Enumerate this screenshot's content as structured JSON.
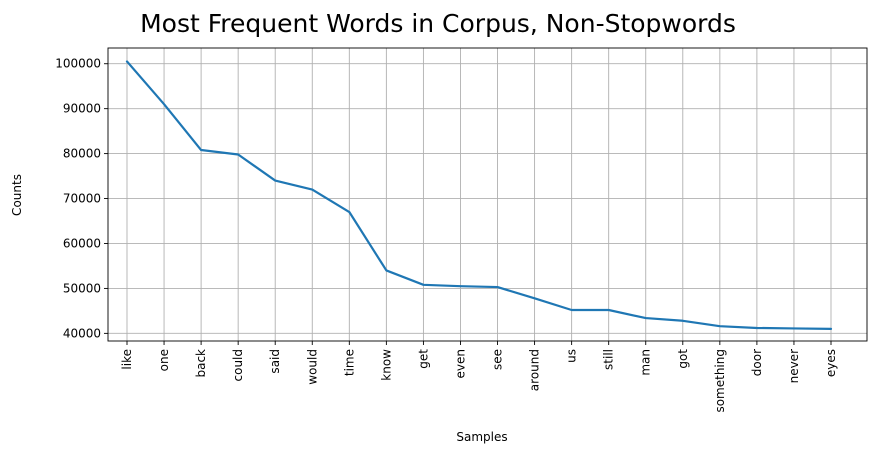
{
  "chart_data": {
    "type": "line",
    "title": "Most Frequent Words in Corpus, Non-Stopwords",
    "xlabel": "Samples",
    "ylabel": "Counts",
    "categories": [
      "like",
      "one",
      "back",
      "could",
      "said",
      "would",
      "time",
      "know",
      "get",
      "even",
      "see",
      "around",
      "us",
      "still",
      "man",
      "got",
      "something",
      "door",
      "never",
      "eyes"
    ],
    "series": [
      {
        "values": [
          100500,
          91000,
          80800,
          79800,
          74000,
          72000,
          67000,
          54000,
          50800,
          50500,
          50300,
          47800,
          45200,
          45200,
          43400,
          42800,
          41600,
          41200,
          41100,
          41000
        ]
      }
    ],
    "ylim": [
      38300,
      103500
    ],
    "yticks": [
      40000,
      50000,
      60000,
      70000,
      80000,
      90000,
      100000
    ],
    "ytick_labels": [
      "40000",
      "50000",
      "60000",
      "70000",
      "80000",
      "90000",
      "100000"
    ],
    "grid": true,
    "line_color": "#1f77b4"
  }
}
